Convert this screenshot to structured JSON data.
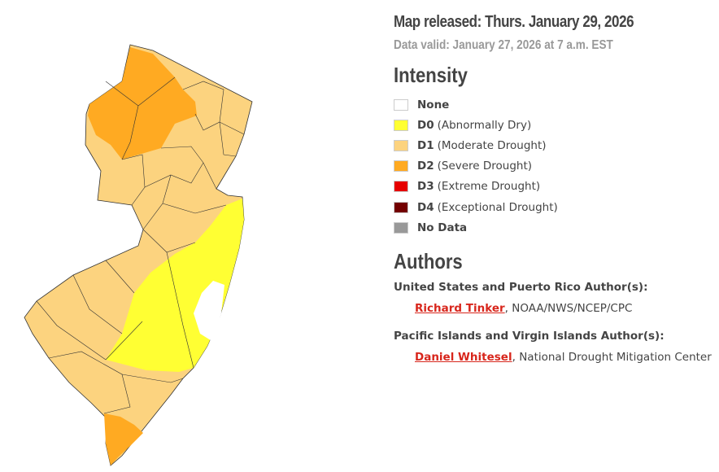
{
  "header": {
    "released": "Map released: Thurs. January 29, 2026",
    "valid": "Data valid: January 27, 2026 at 7 a.m. EST"
  },
  "intensity": {
    "title": "Intensity",
    "items": [
      {
        "code": "None",
        "desc": "",
        "color": "#ffffff"
      },
      {
        "code": "D0",
        "desc": "(Abnormally Dry)",
        "color": "#ffff33"
      },
      {
        "code": "D1",
        "desc": "(Moderate Drought)",
        "color": "#fcd37f"
      },
      {
        "code": "D2",
        "desc": "(Severe Drought)",
        "color": "#ffaa22"
      },
      {
        "code": "D3",
        "desc": "(Extreme Drought)",
        "color": "#e60000"
      },
      {
        "code": "D4",
        "desc": "(Exceptional Drought)",
        "color": "#730000"
      },
      {
        "code": "No Data",
        "desc": "",
        "color": "#999999"
      }
    ]
  },
  "authors": {
    "title": "Authors",
    "groups": [
      {
        "label": "United States and Puerto Rico Author(s):",
        "name": "Richard Tinker",
        "org": ", NOAA/NWS/NCEP/CPC"
      },
      {
        "label": "Pacific Islands and Virgin Islands Author(s):",
        "name": "Daniel Whitesel",
        "org": ", National Drought Mitigation Center"
      }
    ]
  },
  "map": {
    "region": "New Jersey",
    "link_color": "#d8261c"
  }
}
